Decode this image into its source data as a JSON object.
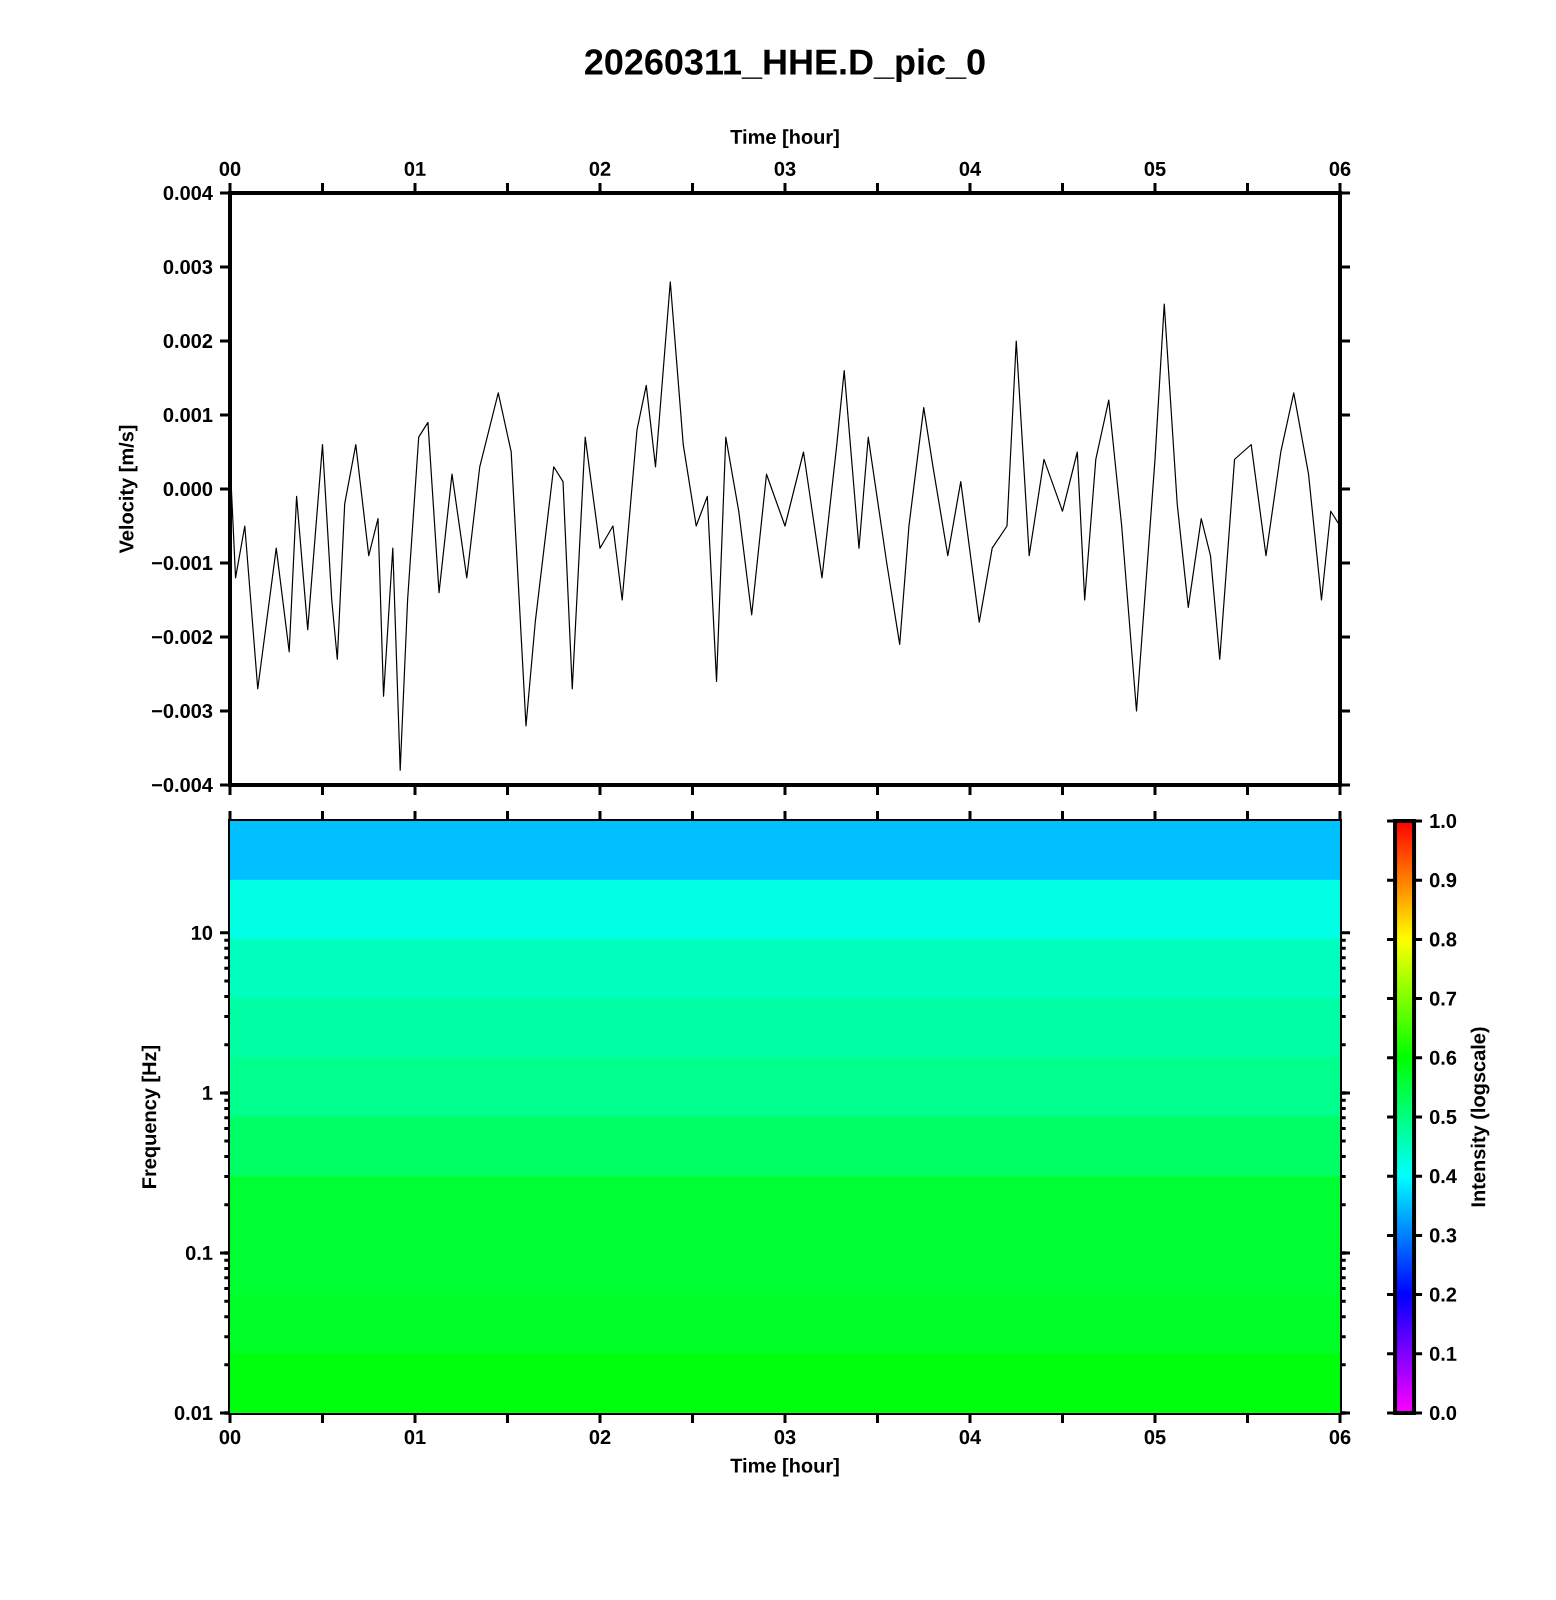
{
  "chart_data": [
    {
      "type": "line",
      "title": "20260311_HHE.D_pic_0",
      "xlabel": "Time [hour]",
      "ylabel": "Velocity [m/s]",
      "xlim": [
        0,
        6
      ],
      "xticks": [
        {
          "value": 0,
          "label": "00"
        },
        {
          "value": 0.5,
          "label": null
        },
        {
          "value": 1,
          "label": "01"
        },
        {
          "value": 1.5,
          "label": null
        },
        {
          "value": 2,
          "label": "02"
        },
        {
          "value": 2.5,
          "label": null
        },
        {
          "value": 3,
          "label": "03"
        },
        {
          "value": 3.5,
          "label": null
        },
        {
          "value": 4,
          "label": "04"
        },
        {
          "value": 4.5,
          "label": null
        },
        {
          "value": 5,
          "label": "05"
        },
        {
          "value": 5.5,
          "label": null
        },
        {
          "value": 6,
          "label": "06"
        }
      ],
      "ylim": [
        -0.004,
        0.004
      ],
      "yticks": [
        {
          "value": -0.004,
          "label": "−0.004"
        },
        {
          "value": -0.003,
          "label": "−0.003"
        },
        {
          "value": -0.002,
          "label": "−0.002"
        },
        {
          "value": -0.001,
          "label": "−0.001"
        },
        {
          "value": 0,
          "label": "0.000"
        },
        {
          "value": 0.001,
          "label": "0.001"
        },
        {
          "value": 0.002,
          "label": "0.002"
        },
        {
          "value": 0.003,
          "label": "0.003"
        },
        {
          "value": 0.004,
          "label": "0.004"
        }
      ],
      "marker": "none",
      "series": [
        {
          "color": "#000000",
          "x": [
            0.0,
            0.03,
            0.08,
            0.15,
            0.25,
            0.32,
            0.36,
            0.42,
            0.5,
            0.55,
            0.58,
            0.62,
            0.68,
            0.75,
            0.8,
            0.83,
            0.88,
            0.92,
            0.96,
            1.02,
            1.07,
            1.13,
            1.2,
            1.28,
            1.35,
            1.45,
            1.52,
            1.6,
            1.65,
            1.75,
            1.8,
            1.85,
            1.92,
            2.0,
            2.07,
            2.12,
            2.2,
            2.25,
            2.3,
            2.38,
            2.45,
            2.52,
            2.58,
            2.63,
            2.68,
            2.75,
            2.82,
            2.9,
            3.0,
            3.1,
            3.2,
            3.28,
            3.32,
            3.4,
            3.45,
            3.55,
            3.62,
            3.67,
            3.75,
            3.8,
            3.88,
            3.95,
            4.05,
            4.12,
            4.2,
            4.25,
            4.32,
            4.4,
            4.5,
            4.58,
            4.62,
            4.68,
            4.75,
            4.82,
            4.9,
            5.0,
            5.05,
            5.12,
            5.18,
            5.25,
            5.3,
            5.35,
            5.43,
            5.52,
            5.6,
            5.68,
            5.75,
            5.83,
            5.9,
            5.95,
            6.0
          ],
          "values": [
            0.0004,
            -0.0012,
            -0.0005,
            -0.0027,
            -0.0008,
            -0.0022,
            -0.0001,
            -0.0019,
            0.0006,
            -0.0015,
            -0.0023,
            -0.0002,
            0.0006,
            -0.0009,
            -0.0004,
            -0.0028,
            -0.0008,
            -0.0038,
            -0.0015,
            0.0007,
            0.0009,
            -0.0014,
            0.0002,
            -0.0012,
            0.0003,
            0.0013,
            0.0005,
            -0.0032,
            -0.0018,
            0.0003,
            0.0001,
            -0.0027,
            0.0007,
            -0.0008,
            -0.0005,
            -0.0015,
            0.0008,
            0.0014,
            0.0003,
            0.0028,
            0.0006,
            -0.0005,
            -0.0001,
            -0.0026,
            0.0007,
            -0.0003,
            -0.0017,
            0.0002,
            -0.0005,
            0.0005,
            -0.0012,
            0.0006,
            0.0016,
            -0.0008,
            0.0007,
            -0.001,
            -0.0021,
            -0.0005,
            0.0011,
            0.0003,
            -0.0009,
            0.0001,
            -0.0018,
            -0.0008,
            -0.0005,
            0.002,
            -0.0009,
            0.0004,
            -0.0003,
            0.0005,
            -0.0015,
            0.0004,
            0.0012,
            -0.0005,
            -0.003,
            0.0004,
            0.0025,
            -0.0002,
            -0.0016,
            -0.0004,
            -0.0009,
            -0.0023,
            0.0004,
            0.0006,
            -0.0009,
            0.0005,
            0.0013,
            0.0002,
            -0.0015,
            -0.0003,
            -0.0005
          ]
        }
      ]
    },
    {
      "type": "heatmap",
      "xlabel": "Time [hour]",
      "ylabel": "Frequency [Hz]",
      "clabel": "Intensity (logscale)",
      "xlim": [
        0,
        6
      ],
      "xticks": [
        {
          "value": 0,
          "label": "00"
        },
        {
          "value": 0.5,
          "label": null
        },
        {
          "value": 1,
          "label": "01"
        },
        {
          "value": 1.5,
          "label": null
        },
        {
          "value": 2,
          "label": "02"
        },
        {
          "value": 2.5,
          "label": null
        },
        {
          "value": 3,
          "label": "03"
        },
        {
          "value": 3.5,
          "label": null
        },
        {
          "value": 4,
          "label": "04"
        },
        {
          "value": 4.5,
          "label": null
        },
        {
          "value": 5,
          "label": "05"
        },
        {
          "value": 5.5,
          "label": null
        },
        {
          "value": 6,
          "label": "06"
        }
      ],
      "ylim": [
        0.01,
        50
      ],
      "yticks": [
        0.01,
        0.1,
        1,
        10
      ],
      "log": "y",
      "clim": [
        0,
        1
      ],
      "cticks": [
        {
          "value": 0,
          "label": "0.0"
        },
        0.1,
        0.2,
        0.3,
        0.4,
        0.5,
        0.6,
        0.7,
        0.8,
        0.9,
        {
          "value": 1,
          "label": "1.0"
        }
      ],
      "cells": [
        [
          0.35
        ],
        [
          0.42
        ],
        [
          0.45
        ],
        [
          0.47
        ],
        [
          0.49
        ],
        [
          0.52
        ],
        [
          0.56
        ],
        [
          0.56
        ],
        [
          0.57
        ],
        [
          0.59
        ]
      ]
    }
  ]
}
